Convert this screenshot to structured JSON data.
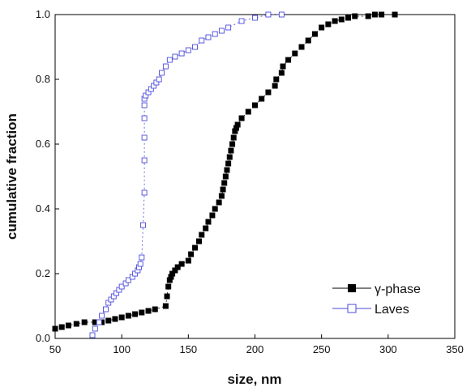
{
  "chart_data": {
    "type": "scatter",
    "xlabel": "size, nm",
    "ylabel": "cumulative fraction",
    "xlim": [
      50,
      350
    ],
    "ylim": [
      0,
      1.0
    ],
    "xticks": [
      50,
      100,
      150,
      200,
      250,
      300,
      350
    ],
    "xtick_labels": [
      "50",
      "100",
      "150",
      "200",
      "250",
      "300",
      "350"
    ],
    "yticks": [
      0,
      0.2,
      0.4,
      0.6,
      0.8,
      1.0
    ],
    "ytick_labels": [
      "0.0",
      "0.2",
      "0.4",
      "0.6",
      "0.8",
      "1.0"
    ],
    "legend_position": "bottom-right",
    "series": [
      {
        "name": "γ-phase",
        "marker": "filled-square",
        "color": "#000000",
        "x": [
          50,
          55,
          60,
          66,
          72,
          80,
          85,
          90,
          95,
          100,
          105,
          110,
          115,
          120,
          125,
          133,
          134,
          135,
          136,
          137,
          138,
          140,
          142,
          145,
          150,
          152,
          155,
          158,
          160,
          163,
          165,
          168,
          170,
          173,
          175,
          176,
          177,
          178,
          179,
          180,
          181,
          182,
          183,
          184,
          185,
          186,
          187,
          190,
          195,
          200,
          205,
          210,
          215,
          216,
          220,
          221,
          225,
          230,
          235,
          240,
          245,
          250,
          255,
          260,
          265,
          270,
          275,
          285,
          290,
          295,
          305
        ],
        "y": [
          0.03,
          0.035,
          0.04,
          0.045,
          0.05,
          0.05,
          0.05,
          0.055,
          0.06,
          0.065,
          0.07,
          0.075,
          0.08,
          0.085,
          0.09,
          0.1,
          0.13,
          0.16,
          0.18,
          0.19,
          0.2,
          0.21,
          0.22,
          0.23,
          0.24,
          0.26,
          0.28,
          0.3,
          0.32,
          0.34,
          0.36,
          0.38,
          0.4,
          0.42,
          0.44,
          0.46,
          0.48,
          0.5,
          0.52,
          0.54,
          0.56,
          0.58,
          0.6,
          0.62,
          0.64,
          0.65,
          0.66,
          0.68,
          0.7,
          0.72,
          0.74,
          0.76,
          0.78,
          0.8,
          0.82,
          0.84,
          0.86,
          0.88,
          0.9,
          0.92,
          0.94,
          0.96,
          0.97,
          0.98,
          0.985,
          0.99,
          0.995,
          0.995,
          1.0,
          1.0,
          1.0
        ]
      },
      {
        "name": "Laves",
        "marker": "open-square",
        "color": "#4a4adc",
        "x": [
          78,
          80,
          83,
          85,
          88,
          90,
          92,
          94,
          96,
          98,
          100,
          103,
          105,
          108,
          110,
          112,
          113,
          114,
          115,
          116,
          117,
          117,
          117,
          117,
          117,
          117,
          118,
          120,
          122,
          124,
          126,
          128,
          130,
          133,
          136,
          140,
          145,
          150,
          155,
          160,
          165,
          170,
          175,
          180,
          190,
          200,
          210,
          220
        ],
        "y": [
          0.01,
          0.03,
          0.05,
          0.07,
          0.09,
          0.11,
          0.12,
          0.13,
          0.14,
          0.15,
          0.16,
          0.17,
          0.18,
          0.19,
          0.2,
          0.21,
          0.22,
          0.23,
          0.25,
          0.35,
          0.45,
          0.55,
          0.62,
          0.68,
          0.72,
          0.74,
          0.75,
          0.76,
          0.77,
          0.78,
          0.79,
          0.8,
          0.82,
          0.84,
          0.86,
          0.87,
          0.88,
          0.89,
          0.9,
          0.92,
          0.93,
          0.94,
          0.95,
          0.96,
          0.98,
          0.99,
          1.0,
          1.0
        ]
      }
    ]
  }
}
